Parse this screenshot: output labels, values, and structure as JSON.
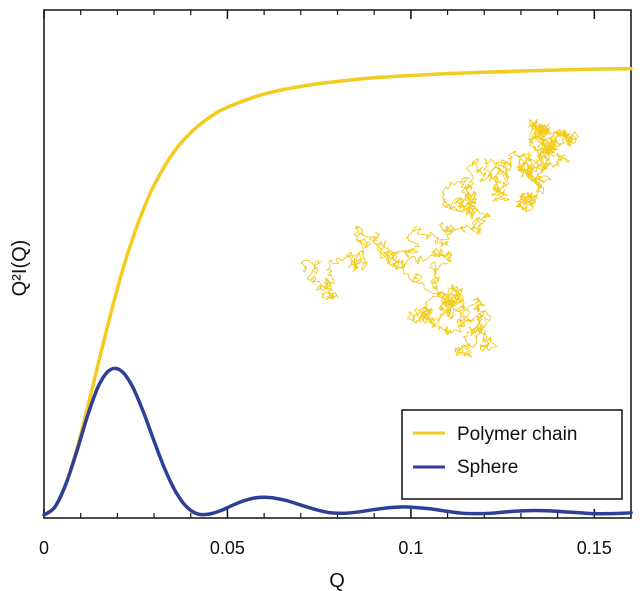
{
  "chart_data": {
    "type": "line",
    "xlabel": "Q",
    "ylabel": "Q²I(Q)",
    "xlim": [
      0,
      0.16
    ],
    "ylim": [
      0,
      1.12
    ],
    "xticks": [
      {
        "value": 0,
        "label": "0"
      },
      {
        "value": 0.05,
        "label": "0.05"
      },
      {
        "value": 0.1,
        "label": "0.1"
      },
      {
        "value": 0.15,
        "label": "0.15"
      }
    ],
    "yticks_labeled": false,
    "grid": false,
    "legend_position": "bottom-right",
    "inset_image": "random-walk-polymer-chain",
    "series": [
      {
        "name": "Polymer chain",
        "color": "#f2cc1e",
        "x": [
          0,
          0.003,
          0.006,
          0.009,
          0.012,
          0.015,
          0.018,
          0.021,
          0.024,
          0.027,
          0.03,
          0.035,
          0.04,
          0.045,
          0.05,
          0.06,
          0.07,
          0.08,
          0.09,
          0.1,
          0.11,
          0.12,
          0.13,
          0.14,
          0.15,
          0.16
        ],
        "y": [
          0.0,
          0.018,
          0.069,
          0.147,
          0.241,
          0.341,
          0.438,
          0.528,
          0.606,
          0.672,
          0.727,
          0.796,
          0.843,
          0.876,
          0.899,
          0.928,
          0.945,
          0.956,
          0.964,
          0.969,
          0.973,
          0.976,
          0.979,
          0.981,
          0.983,
          0.984
        ]
      },
      {
        "name": "Sphere",
        "color": "#2e3f96",
        "x": [
          0,
          0.003,
          0.006,
          0.009,
          0.012,
          0.015,
          0.018,
          0.021,
          0.024,
          0.027,
          0.03,
          0.033,
          0.036,
          0.039,
          0.042,
          0.045,
          0.048,
          0.051,
          0.054,
          0.057,
          0.06,
          0.063,
          0.066,
          0.07,
          0.074,
          0.078,
          0.082,
          0.086,
          0.09,
          0.094,
          0.098,
          0.102,
          0.106,
          0.11,
          0.114,
          0.118,
          0.122,
          0.126,
          0.13,
          0.134,
          0.138,
          0.142,
          0.146,
          0.15,
          0.154,
          0.158,
          0.16
        ],
        "y": [
          0.0,
          0.018,
          0.069,
          0.142,
          0.222,
          0.287,
          0.32,
          0.318,
          0.285,
          0.229,
          0.163,
          0.1,
          0.05,
          0.017,
          0.002,
          0.002,
          0.009,
          0.02,
          0.03,
          0.037,
          0.039,
          0.037,
          0.032,
          0.022,
          0.012,
          0.005,
          0.004,
          0.007,
          0.012,
          0.016,
          0.018,
          0.016,
          0.013,
          0.008,
          0.004,
          0.003,
          0.004,
          0.007,
          0.009,
          0.01,
          0.009,
          0.007,
          0.005,
          0.003,
          0.003,
          0.004,
          0.005
        ]
      }
    ]
  }
}
